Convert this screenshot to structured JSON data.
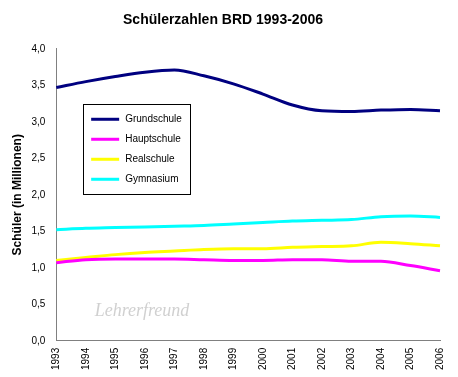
{
  "chart_data": {
    "type": "line",
    "title": "Schülerzahlen BRD 1993-2006",
    "y_label": "Schüler (in Millionen)",
    "categories": [
      "1993",
      "1994",
      "1995",
      "1996",
      "1997",
      "1998",
      "1999",
      "2000",
      "2001",
      "2002",
      "2003",
      "2004",
      "2005",
      "2006"
    ],
    "series": [
      {
        "name": "Grundschule",
        "color": "#000080",
        "values": [
          3.47,
          3.55,
          3.62,
          3.68,
          3.71,
          3.63,
          3.52,
          3.38,
          3.23,
          3.15,
          3.14,
          3.16,
          3.17,
          3.15
        ]
      },
      {
        "name": "Hauptschule",
        "color": "#ff00ff",
        "values": [
          1.07,
          1.11,
          1.12,
          1.12,
          1.12,
          1.11,
          1.1,
          1.1,
          1.11,
          1.11,
          1.09,
          1.09,
          1.03,
          0.96
        ]
      },
      {
        "name": "Realschule",
        "color": "#ffff00",
        "values": [
          1.1,
          1.14,
          1.18,
          1.21,
          1.23,
          1.25,
          1.26,
          1.26,
          1.28,
          1.29,
          1.3,
          1.35,
          1.33,
          1.3
        ]
      },
      {
        "name": "Gymnasium",
        "color": "#00ffff",
        "values": [
          1.52,
          1.54,
          1.55,
          1.56,
          1.57,
          1.58,
          1.6,
          1.62,
          1.64,
          1.65,
          1.66,
          1.7,
          1.71,
          1.69
        ]
      }
    ],
    "ylim": [
      0,
      4
    ],
    "yticks": [
      {
        "value": 0,
        "label": "0,0"
      },
      {
        "value": 0.5,
        "label": "0,5"
      },
      {
        "value": 1,
        "label": "1,0"
      },
      {
        "value": 1.5,
        "label": "1,5"
      },
      {
        "value": 2,
        "label": "2,0"
      },
      {
        "value": 2.5,
        "label": "2,5"
      },
      {
        "value": 3,
        "label": "3,0"
      },
      {
        "value": 3.5,
        "label": "3,5"
      },
      {
        "value": 4,
        "label": "4,0"
      }
    ],
    "grid": false,
    "legend": "upper left",
    "annotations": [
      "Lehrerfreund"
    ]
  }
}
